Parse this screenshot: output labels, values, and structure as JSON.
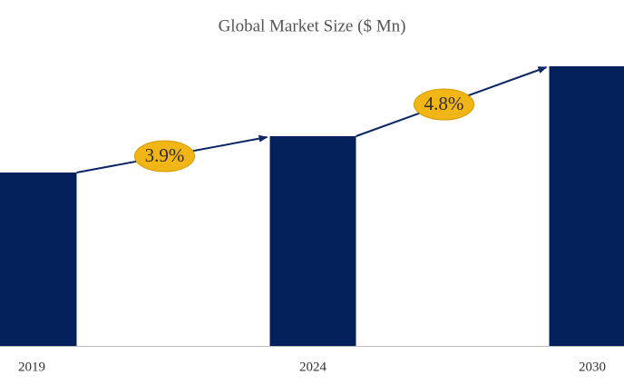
{
  "chart_data": {
    "type": "bar",
    "title": "Global Market Size ($ Mn)",
    "categories": [
      "2019",
      "2024",
      "2030"
    ],
    "values": [
      191,
      231,
      308
    ],
    "color": "#04205c",
    "ylim": [
      0,
      330
    ],
    "annotations": [
      "3.9%",
      "4.8%"
    ],
    "annotation_color": "#f2b516",
    "arrow_color": "#0b2664"
  }
}
